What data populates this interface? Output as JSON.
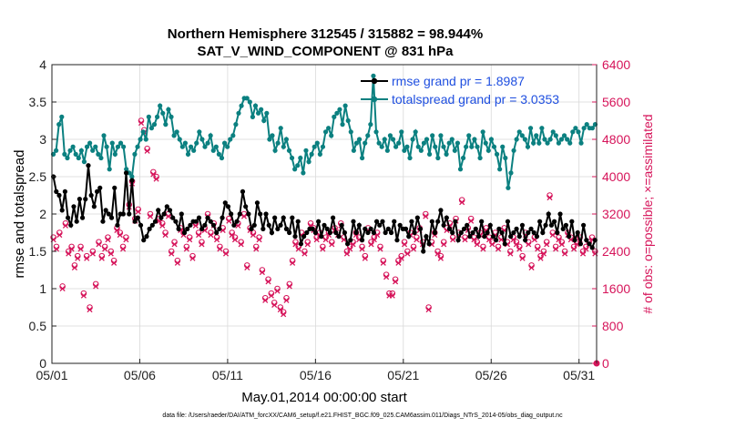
{
  "chart_data": {
    "type": "line",
    "title": "Northern Hemisphere 312545 / 315882 = 98.944%",
    "subtitle": "SAT_V_WIND_COMPONENT @ 831 hPa",
    "xlabel": "May.01,2014 00:00:00 start",
    "ylabel": "rmse and totalspread",
    "ylabel_right": "# of obs: o=possible; ×=assimilated",
    "footnote": "data file: /Users/raeder/DAI/ATM_forcXX/CAM6_setup/f.e21.FHIST_BGC.f09_025.CAM6assim.011/Diags_NTrS_2014-05/obs_diag_output.nc",
    "x_tick_labels": [
      "05/01",
      "05/06",
      "05/11",
      "05/16",
      "05/21",
      "05/26",
      "05/31"
    ],
    "x_tick_days": [
      1,
      6,
      11,
      16,
      21,
      26,
      31
    ],
    "xlim_days": [
      1,
      32
    ],
    "ylim": [
      0,
      4
    ],
    "y_ticks": [
      0,
      0.5,
      1,
      1.5,
      2,
      2.5,
      3,
      3.5,
      4
    ],
    "y_tick_labels": [
      "0",
      "0.5",
      "1",
      "1.5",
      "2",
      "2.5",
      "3",
      "3.5",
      "4"
    ],
    "ylim_right": [
      0,
      6400
    ],
    "y_ticks_right": [
      0,
      800,
      1600,
      2400,
      3200,
      4000,
      4800,
      5600,
      6400
    ],
    "y_tick_labels_right": [
      "0",
      "800",
      "1600",
      "2400",
      "3200",
      "4000",
      "4800",
      "5600",
      "6400"
    ],
    "grid": true,
    "legend_placement": "top-right",
    "series": [
      {
        "name": "rmse grand pr = 1.8987",
        "axis": "left",
        "color": "#000000",
        "marker": "filled-circle",
        "values": [
          2.5,
          2.3,
          2.25,
          2.05,
          2.3,
          1.95,
          1.85,
          2.1,
          1.9,
          2.2,
          1.95,
          2.2,
          2.65,
          2.25,
          2.1,
          2.3,
          2.35,
          1.9,
          2.05,
          2.0,
          1.95,
          2.35,
          1.85,
          2.0,
          2.0,
          2.55,
          2.0,
          2.45,
          1.9,
          1.95,
          1.85,
          1.65,
          1.7,
          1.8,
          1.85,
          1.9,
          2.05,
          1.95,
          2.0,
          2.1,
          2.05,
          1.95,
          1.9,
          1.8,
          2.0,
          1.75,
          1.8,
          1.85,
          1.9,
          1.9,
          1.95,
          1.8,
          1.85,
          1.95,
          1.9,
          1.85,
          1.75,
          1.8,
          1.95,
          2.15,
          2.1,
          2.0,
          1.85,
          1.9,
          2.0,
          2.3,
          2.1,
          2.0,
          1.8,
          1.85,
          2.15,
          2.0,
          1.8,
          2.0,
          1.85,
          1.75,
          1.95,
          1.8,
          1.85,
          1.95,
          1.8,
          1.75,
          1.95,
          1.7,
          1.9,
          1.6,
          1.7,
          1.75,
          1.8,
          1.8,
          1.75,
          1.9,
          1.7,
          1.85,
          1.8,
          1.75,
          1.95,
          1.75,
          1.7,
          1.85,
          1.75,
          1.6,
          1.65,
          1.9,
          1.75,
          1.85,
          1.65,
          1.8,
          1.75,
          1.8,
          1.75,
          1.9,
          1.85,
          1.9,
          1.75,
          1.8,
          1.75,
          1.9,
          1.65,
          1.85,
          1.8,
          1.8,
          1.7,
          1.9,
          1.75,
          1.95,
          1.8,
          1.5,
          1.7,
          1.6,
          1.9,
          1.75,
          1.9,
          2.05,
          1.85,
          1.95,
          1.8,
          1.75,
          1.9,
          1.65,
          1.75,
          1.8,
          1.85,
          1.7,
          1.75,
          1.8,
          1.7,
          1.9,
          1.7,
          1.75,
          1.85,
          1.7,
          1.65,
          1.8,
          1.75,
          1.6,
          1.9,
          1.7,
          1.75,
          1.8,
          1.7,
          1.85,
          1.65,
          1.75,
          1.8,
          1.75,
          1.7,
          1.9,
          1.75,
          1.85,
          2.0,
          1.85,
          1.9,
          1.75,
          2.0,
          1.8,
          1.85,
          1.7,
          1.9,
          1.65,
          1.75,
          1.6,
          1.85,
          1.65,
          1.6,
          1.55,
          1.65
        ]
      },
      {
        "name": "totalspread grand pr = 3.0353",
        "axis": "left",
        "color": "#0b8080",
        "marker": "filled-circle",
        "values": [
          2.8,
          2.85,
          3.2,
          3.3,
          2.8,
          2.75,
          2.85,
          2.9,
          2.8,
          2.75,
          2.85,
          2.7,
          2.9,
          2.95,
          2.85,
          2.9,
          2.8,
          2.75,
          3.05,
          2.9,
          2.6,
          2.95,
          2.8,
          2.9,
          2.95,
          2.9,
          2.6,
          2.55,
          2.5,
          2.8,
          2.9,
          3.0,
          3.1,
          3.0,
          3.3,
          3.15,
          3.2,
          3.3,
          3.45,
          3.35,
          3.2,
          3.4,
          3.3,
          3.05,
          3.1,
          3.0,
          2.9,
          2.95,
          2.8,
          2.9,
          2.85,
          2.95,
          3.1,
          3.0,
          2.9,
          2.95,
          3.05,
          2.85,
          2.9,
          2.8,
          2.75,
          2.95,
          2.9,
          3.0,
          3.05,
          3.2,
          3.35,
          3.45,
          3.55,
          3.55,
          3.5,
          3.3,
          3.45,
          3.35,
          3.4,
          3.25,
          3.35,
          3.0,
          3.05,
          2.85,
          2.95,
          3.15,
          2.9,
          3.0,
          2.85,
          2.75,
          2.6,
          2.65,
          2.75,
          2.55,
          2.85,
          2.7,
          2.8,
          2.9,
          2.95,
          2.8,
          2.9,
          3.1,
          3.15,
          3.05,
          3.3,
          3.35,
          3.4,
          3.2,
          3.45,
          3.25,
          3.1,
          2.85,
          2.95,
          3.0,
          2.75,
          2.95,
          3.05,
          3.2,
          3.85,
          3.1,
          2.95,
          2.9,
          3.0,
          2.85,
          3.05,
          3.0,
          2.9,
          2.95,
          3.1,
          2.85,
          2.9,
          2.75,
          3.0,
          3.1,
          2.9,
          2.85,
          2.95,
          3.0,
          2.8,
          3.05,
          2.9,
          2.75,
          3.05,
          2.9,
          2.8,
          2.95,
          3.0,
          2.85,
          2.95,
          2.6,
          2.75,
          2.9,
          3.05,
          2.9,
          3.0,
          2.9,
          2.75,
          3.1,
          2.95,
          2.85,
          3.0,
          2.9,
          2.8,
          2.6,
          2.9,
          2.75,
          2.35,
          2.55,
          2.85,
          3.0,
          3.1,
          3.05,
          3.0,
          2.9,
          3.15,
          2.95,
          3.05,
          2.95,
          3.15,
          3.0,
          2.95,
          3.0,
          3.1,
          3.05,
          2.95,
          3.0,
          3.05,
          3.0,
          2.95,
          3.1,
          3.15,
          3.1,
          2.95,
          3.15,
          3.2,
          3.15,
          3.15,
          3.2
        ]
      },
      {
        "name": "obs possible",
        "axis": "right",
        "color": "#d6145a",
        "marker": "open-circle",
        "values": [
          2700,
          2500,
          2800,
          1650,
          3000,
          2400,
          2500,
          2100,
          2300,
          2500,
          1500,
          2300,
          1200,
          2400,
          1700,
          2600,
          2300,
          2500,
          2700,
          2400,
          2200,
          2900,
          2800,
          2500,
          2700,
          3400,
          3900,
          3100,
          3300,
          5200,
          5000,
          4600,
          3200,
          4100,
          4000,
          3100,
          3000,
          2800,
          3200,
          2400,
          2600,
          2200,
          2900,
          2800,
          2500,
          2700,
          2300,
          3000,
          2800,
          2600,
          2900,
          3200,
          2800,
          3000,
          2700,
          2500,
          2900,
          2400,
          3100,
          2800,
          2700,
          3000,
          2600,
          3200,
          2100,
          2900,
          2800,
          2500,
          2700,
          2000,
          1400,
          1800,
          1500,
          1300,
          1600,
          1200,
          1100,
          1400,
          1700,
          2200,
          2600,
          2500,
          2800,
          2400,
          2600,
          3000,
          2900,
          2700,
          2800,
          2500,
          2700,
          2800,
          2600,
          2900,
          2800,
          3000,
          2700,
          2400,
          2500,
          2600,
          2800,
          2700,
          2500,
          2300,
          2900,
          2600,
          2700,
          2800,
          2500,
          2200,
          1900,
          1500,
          1500,
          1800,
          2200,
          2300,
          2600,
          2400,
          2800,
          2500,
          2700,
          2900,
          2600,
          3200,
          1200,
          2600,
          2800,
          2400,
          2300,
          2600,
          2900,
          3000,
          2700,
          3100,
          2800,
          3500,
          2700,
          2900,
          3100,
          2700,
          2600,
          2800,
          2500,
          2900,
          2700,
          2600,
          2800,
          2500,
          2700,
          2900,
          2600,
          2400,
          2700,
          2600,
          2500,
          2300,
          2800,
          2600,
          2100,
          2700,
          2500,
          2300,
          2400,
          2600,
          3600,
          2800,
          2500,
          2700,
          2600,
          2400,
          2800,
          2700,
          2500,
          2600,
          2700,
          2400,
          2500,
          2600,
          2700,
          2400
        ]
      },
      {
        "name": "obs assimilated",
        "axis": "right",
        "color": "#d6145a",
        "marker": "x",
        "values": [
          2650,
          2450,
          2750,
          1600,
          2950,
          2350,
          2450,
          2050,
          2250,
          2450,
          1450,
          2250,
          1150,
          2350,
          1650,
          2550,
          2250,
          2450,
          2650,
          2350,
          2150,
          2850,
          2750,
          2450,
          2650,
          3350,
          3850,
          3050,
          3250,
          5150,
          4950,
          4550,
          3150,
          4050,
          3950,
          3050,
          2950,
          2750,
          3150,
          2350,
          2550,
          2150,
          2850,
          2750,
          2450,
          2650,
          2250,
          2950,
          2750,
          2550,
          2850,
          3150,
          2750,
          2950,
          2650,
          2450,
          2850,
          2350,
          3050,
          2750,
          2650,
          2950,
          2550,
          3150,
          2050,
          2850,
          2750,
          2450,
          2650,
          1950,
          1350,
          1750,
          1450,
          1250,
          1550,
          1150,
          1050,
          1350,
          1650,
          2150,
          2550,
          2450,
          2750,
          2350,
          2550,
          2950,
          2850,
          2650,
          2750,
          2450,
          2650,
          2750,
          2550,
          2850,
          2750,
          2950,
          2650,
          2350,
          2450,
          2550,
          2750,
          2650,
          2450,
          2250,
          2850,
          2550,
          2650,
          2750,
          2450,
          2150,
          1850,
          1450,
          1450,
          1750,
          2150,
          2250,
          2550,
          2350,
          2750,
          2450,
          2650,
          2850,
          2550,
          3150,
          1150,
          2550,
          2750,
          2350,
          2250,
          2550,
          2850,
          2950,
          2650,
          3050,
          2750,
          3450,
          2650,
          2850,
          3050,
          2650,
          2550,
          2750,
          2450,
          2850,
          2650,
          2550,
          2750,
          2450,
          2650,
          2850,
          2550,
          2350,
          2650,
          2550,
          2450,
          2250,
          2750,
          2550,
          2050,
          2650,
          2450,
          2250,
          2350,
          2550,
          3550,
          2750,
          2450,
          2650,
          2550,
          2350,
          2750,
          2650,
          2450,
          2550,
          2650,
          2350,
          2450,
          2550,
          2650,
          2350
        ]
      }
    ]
  }
}
